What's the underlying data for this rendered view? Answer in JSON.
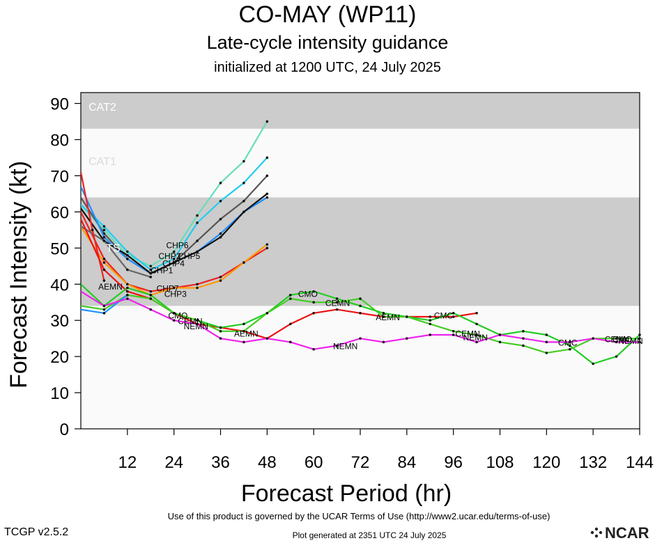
{
  "header": {
    "title": "CO-MAY (WP11)",
    "subtitle": "Late-cycle intensity guidance",
    "init": "initialized at 1200 UTC, 24 July 2025"
  },
  "footer": {
    "terms": "Use of this product is governed by the UCAR Terms of Use (http://www2.ucar.edu/terms-of-use)",
    "version": "TCGP v2.5.2",
    "generated": "Plot generated at 2351 UTC   24 July 2025",
    "logo_text": "NCAR"
  },
  "chart_data": {
    "type": "line",
    "xlabel": "Forecast Period (hr)",
    "ylabel": "Forecast Intensity (kt)",
    "xlim": [
      0,
      144
    ],
    "ylim": [
      0,
      93
    ],
    "xticks": [
      12,
      24,
      36,
      48,
      60,
      72,
      84,
      96,
      108,
      120,
      132,
      144
    ],
    "yticks": [
      0,
      10,
      20,
      30,
      40,
      50,
      60,
      70,
      80,
      90
    ],
    "bands": [
      {
        "label": "CAT2",
        "from": 83,
        "to": 93,
        "color": "#cccccc"
      },
      {
        "label": "CAT1",
        "from": 64,
        "to": 83,
        "color": "#fafafa"
      },
      {
        "label": "TS",
        "from": 34,
        "to": 64,
        "color": "#cccccc"
      },
      {
        "label": "",
        "from": 0,
        "to": 34,
        "color": "#fafafa"
      }
    ],
    "series": [
      {
        "name": "CHP6",
        "color": "#66ddbb",
        "x": [
          0,
          6,
          12,
          18,
          24,
          30,
          36,
          42,
          48
        ],
        "y": [
          62,
          55,
          48,
          45,
          49,
          59,
          68,
          74,
          85
        ]
      },
      {
        "name": "CHP2",
        "color": "#22ccee",
        "x": [
          0,
          6,
          12,
          18,
          24,
          30,
          36,
          42,
          48
        ],
        "y": [
          62,
          56,
          49,
          44,
          47,
          57,
          63,
          68,
          75
        ]
      },
      {
        "name": "CHP5",
        "color": "#555555",
        "x": [
          0,
          6,
          12,
          18,
          24,
          30,
          36,
          42,
          48
        ],
        "y": [
          64,
          54,
          47,
          43,
          46,
          52,
          58,
          63,
          70
        ]
      },
      {
        "name": "CHP4",
        "color": "#1e90ff",
        "x": [
          0,
          6,
          12,
          18,
          24,
          30,
          36,
          42,
          48
        ],
        "y": [
          67,
          53,
          47,
          43,
          46,
          49,
          54,
          60,
          64
        ]
      },
      {
        "name": "CHP1",
        "color": "#111111",
        "x": [
          0,
          6,
          12,
          18,
          24,
          30,
          36,
          42,
          48
        ],
        "y": [
          61,
          52,
          48,
          43,
          46,
          49,
          53,
          60,
          65
        ]
      },
      {
        "name": "CHP7",
        "color": "#ee2222",
        "x": [
          0,
          6,
          12,
          18,
          24,
          30,
          36,
          42,
          48
        ],
        "y": [
          60,
          47,
          40,
          38,
          39,
          40,
          42,
          46,
          50
        ]
      },
      {
        "name": "CHP3",
        "color": "#ff9900",
        "x": [
          0,
          6,
          12,
          18,
          24,
          30,
          36,
          42,
          48
        ],
        "y": [
          56,
          46,
          40,
          37,
          39,
          39,
          41,
          46,
          51
        ]
      },
      {
        "name": "",
        "color": "#666666",
        "x": [
          0,
          6,
          12,
          18
        ],
        "y": [
          56,
          52,
          44,
          42
        ]
      },
      {
        "name": "",
        "color": "#ee2222",
        "x": [
          0,
          3,
          6
        ],
        "y": [
          71,
          55,
          41
        ]
      },
      {
        "name": "AEMN",
        "color": "#ee1111",
        "x": [
          0,
          6,
          12,
          18,
          24,
          30,
          36,
          42,
          48,
          54,
          60,
          66,
          72,
          78,
          84,
          90,
          96,
          102
        ],
        "y": [
          58,
          44,
          38,
          36,
          32,
          29,
          28,
          27,
          25,
          29,
          32,
          33,
          32,
          31,
          31,
          31,
          31,
          32
        ]
      },
      {
        "name": "CMC",
        "color": "#22cc22",
        "x": [
          0,
          6,
          12,
          18,
          24,
          30,
          36,
          42,
          48,
          54,
          60,
          66,
          72,
          78,
          84,
          90,
          96,
          102,
          108,
          114,
          120,
          126,
          132,
          138,
          144
        ],
        "y": [
          40,
          34,
          39,
          37,
          32,
          30,
          28,
          29,
          32,
          37,
          38,
          36,
          34,
          32,
          31,
          30,
          32,
          29,
          26,
          27,
          26,
          23,
          18,
          20,
          26
        ]
      },
      {
        "name": "CMO",
        "color": "#44cc22",
        "x": [
          0,
          6,
          12,
          18,
          24,
          30,
          36,
          42,
          48,
          54,
          60,
          66,
          72,
          78,
          84,
          90,
          96,
          102,
          108,
          114,
          120,
          126,
          132,
          138,
          144
        ],
        "y": [
          34,
          33,
          37,
          36,
          32,
          30,
          27,
          27,
          32,
          36,
          35,
          35,
          36,
          31,
          31,
          29,
          27,
          26,
          24,
          23,
          21,
          22,
          25,
          25,
          25
        ]
      },
      {
        "name": "CEMN",
        "color": "#1e90ff",
        "x": [
          0,
          6,
          12
        ],
        "y": [
          33,
          32,
          37
        ]
      },
      {
        "name": "NEMN",
        "color": "#ee22ee",
        "x": [
          0,
          6,
          12,
          18,
          24,
          30,
          36,
          42,
          48,
          54,
          60,
          66,
          72,
          78,
          84,
          90,
          96,
          102,
          108,
          114,
          120,
          126,
          132,
          138,
          144
        ],
        "y": [
          38,
          34,
          36,
          33,
          30,
          29,
          25,
          24,
          25,
          24,
          22,
          23,
          25,
          24,
          25,
          26,
          26,
          24,
          26,
          25,
          24,
          24,
          25,
          24,
          24
        ]
      }
    ],
    "labels": [
      {
        "text": "CAT2",
        "x": 2,
        "y": 88
      },
      {
        "text": "CAT1",
        "x": 2,
        "y": 73
      },
      {
        "text": "TS",
        "x": 6.5,
        "y": 49
      },
      {
        "text": "CHP6",
        "x": 22,
        "y": 50
      },
      {
        "text": "CHP2",
        "x": 20,
        "y": 47
      },
      {
        "text": "CHP5",
        "x": 25,
        "y": 47
      },
      {
        "text": "CHP4",
        "x": 21,
        "y": 45
      },
      {
        "text": "CHP1",
        "x": 18,
        "y": 43
      },
      {
        "text": "CHP7",
        "x": 19.5,
        "y": 38
      },
      {
        "text": "CHP3",
        "x": 21.5,
        "y": 36.5
      },
      {
        "text": "AEMN",
        "x": 4.5,
        "y": 38.5
      },
      {
        "text": "CMO",
        "x": 22.5,
        "y": 30.5
      },
      {
        "text": "CEMN",
        "x": 25,
        "y": 29
      },
      {
        "text": "NEMN",
        "x": 26.5,
        "y": 27.5
      },
      {
        "text": "AEMN",
        "x": 39.5,
        "y": 25.5
      },
      {
        "text": "CMO",
        "x": 56,
        "y": 36.5
      },
      {
        "text": "CEMN",
        "x": 63,
        "y": 34
      },
      {
        "text": "AEMN",
        "x": 76,
        "y": 30
      },
      {
        "text": "CMC",
        "x": 91,
        "y": 30.5
      },
      {
        "text": "NEMN",
        "x": 65,
        "y": 22
      },
      {
        "text": "CEMN",
        "x": 96.5,
        "y": 25.5
      },
      {
        "text": "NEMN",
        "x": 98.5,
        "y": 24.5
      },
      {
        "text": "CMC",
        "x": 123,
        "y": 23
      },
      {
        "text": "CMO",
        "x": 137,
        "y": 24
      },
      {
        "text": "CEMN",
        "x": 135,
        "y": 24
      },
      {
        "text": "NEMN",
        "x": 138.5,
        "y": 23.5
      }
    ]
  }
}
